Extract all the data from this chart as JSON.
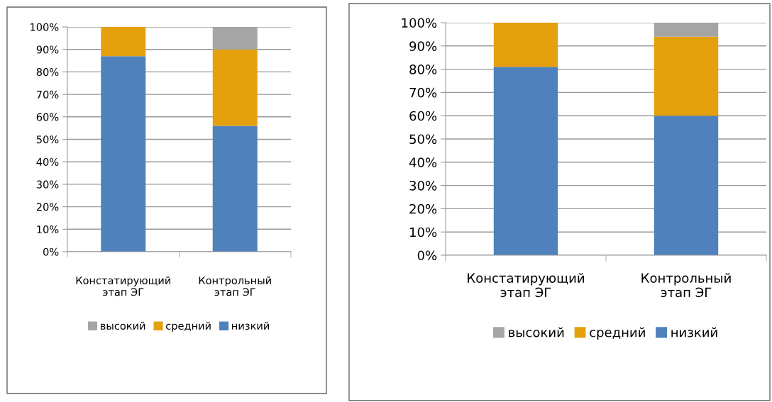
{
  "chart_data": [
    {
      "type": "bar",
      "stacked": true,
      "categories": [
        "Констатирующий\nэтап ЭГ",
        "Контрольный\nэтап ЭГ"
      ],
      "series": [
        {
          "name": "низкий",
          "color": "#4f81bd",
          "values": [
            87,
            56
          ]
        },
        {
          "name": "средний",
          "color": "#e5a00d",
          "values": [
            13,
            34
          ]
        },
        {
          "name": "высокий",
          "color": "#a5a5a5",
          "values": [
            0,
            10
          ]
        }
      ],
      "ylim": [
        0,
        100
      ],
      "yticks": [
        {
          "value": 0,
          "label": "0%"
        },
        {
          "value": 10,
          "label": "10%"
        },
        {
          "value": 20,
          "label": "20%"
        },
        {
          "value": 30,
          "label": "30%"
        },
        {
          "value": 40,
          "label": "40%"
        },
        {
          "value": 50,
          "label": "50%"
        },
        {
          "value": 60,
          "label": "60%"
        },
        {
          "value": 70,
          "label": "70%"
        },
        {
          "value": 80,
          "label": "80%"
        },
        {
          "value": 90,
          "label": "90%"
        },
        {
          "value": 100,
          "label": "100%"
        }
      ],
      "grid": "y",
      "legend": "bottom"
    },
    {
      "type": "bar",
      "stacked": true,
      "categories": [
        "Констатирующий\nэтап ЭГ",
        "Контрольный\nэтап ЭГ"
      ],
      "series": [
        {
          "name": "низкий",
          "color": "#4f81bd",
          "values": [
            81,
            60
          ]
        },
        {
          "name": "средний",
          "color": "#e5a00d",
          "values": [
            19,
            34
          ]
        },
        {
          "name": "высокий",
          "color": "#a5a5a5",
          "values": [
            0,
            6
          ]
        }
      ],
      "ylim": [
        0,
        100
      ],
      "yticks": [
        {
          "value": 0,
          "label": "0%"
        },
        {
          "value": 10,
          "label": "10%"
        },
        {
          "value": 20,
          "label": "20%"
        },
        {
          "value": 30,
          "label": "30%"
        },
        {
          "value": 40,
          "label": "40%"
        },
        {
          "value": 50,
          "label": "50%"
        },
        {
          "value": 60,
          "label": "60%"
        },
        {
          "value": 70,
          "label": "70%"
        },
        {
          "value": 80,
          "label": "80%"
        },
        {
          "value": 90,
          "label": "90%"
        },
        {
          "value": 100,
          "label": "100%"
        }
      ],
      "grid": "y",
      "legend": "bottom"
    }
  ]
}
